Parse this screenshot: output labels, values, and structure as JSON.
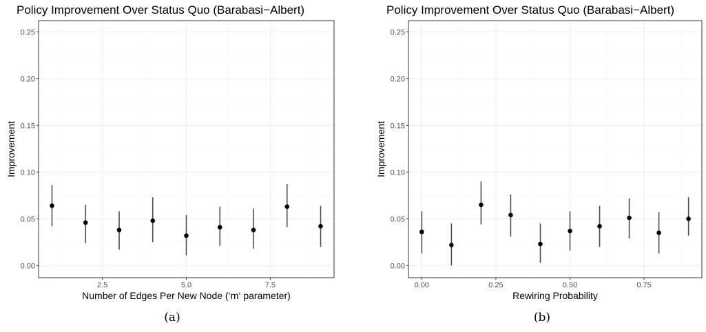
{
  "chart_data": [
    {
      "type": "scatter",
      "title": "Policy Improvement Over Status Quo (Barabasi−Albert)",
      "xlabel": "Number of Edges Per New Node (‘m‘ parameter)",
      "ylabel": "Improvement",
      "caption": "(a)",
      "xlim": [
        0.6,
        9.4
      ],
      "ylim": [
        -0.013,
        0.262
      ],
      "xticks": [
        2.5,
        5.0,
        7.5
      ],
      "xtick_labels": [
        "2.5",
        "5.0",
        "7.5"
      ],
      "yticks": [
        0.0,
        0.05,
        0.1,
        0.15,
        0.2,
        0.25
      ],
      "ytick_labels": [
        "0.00",
        "0.05",
        "0.10",
        "0.15",
        "0.20",
        "0.25"
      ],
      "grid": true,
      "error_bars": true,
      "points": [
        {
          "x": 1,
          "y": 0.064,
          "lo": 0.042,
          "hi": 0.086
        },
        {
          "x": 2,
          "y": 0.046,
          "lo": 0.024,
          "hi": 0.065
        },
        {
          "x": 3,
          "y": 0.038,
          "lo": 0.017,
          "hi": 0.058
        },
        {
          "x": 4,
          "y": 0.048,
          "lo": 0.025,
          "hi": 0.073
        },
        {
          "x": 5,
          "y": 0.032,
          "lo": 0.011,
          "hi": 0.054
        },
        {
          "x": 6,
          "y": 0.041,
          "lo": 0.021,
          "hi": 0.063
        },
        {
          "x": 7,
          "y": 0.038,
          "lo": 0.018,
          "hi": 0.061
        },
        {
          "x": 8,
          "y": 0.063,
          "lo": 0.041,
          "hi": 0.087
        },
        {
          "x": 9,
          "y": 0.042,
          "lo": 0.02,
          "hi": 0.064
        }
      ]
    },
    {
      "type": "scatter",
      "title": "Policy Improvement Over Status Quo (Barabasi−Albert)",
      "xlabel": "Rewiring Probability",
      "ylabel": "Improvement",
      "caption": "(b)",
      "xlim": [
        -0.045,
        0.945
      ],
      "ylim": [
        -0.013,
        0.262
      ],
      "xticks": [
        0.0,
        0.25,
        0.5,
        0.75
      ],
      "xtick_labels": [
        "0.00",
        "0.25",
        "0.50",
        "0.75"
      ],
      "yticks": [
        0.0,
        0.05,
        0.1,
        0.15,
        0.2,
        0.25
      ],
      "ytick_labels": [
        "0.00",
        "0.05",
        "0.10",
        "0.15",
        "0.20",
        "0.25"
      ],
      "grid": true,
      "error_bars": true,
      "points": [
        {
          "x": 0.0,
          "y": 0.036,
          "lo": 0.013,
          "hi": 0.058
        },
        {
          "x": 0.1,
          "y": 0.022,
          "lo": 0.0,
          "hi": 0.045
        },
        {
          "x": 0.2,
          "y": 0.065,
          "lo": 0.044,
          "hi": 0.09
        },
        {
          "x": 0.3,
          "y": 0.054,
          "lo": 0.031,
          "hi": 0.076
        },
        {
          "x": 0.4,
          "y": 0.023,
          "lo": 0.003,
          "hi": 0.045
        },
        {
          "x": 0.5,
          "y": 0.037,
          "lo": 0.016,
          "hi": 0.058
        },
        {
          "x": 0.6,
          "y": 0.042,
          "lo": 0.02,
          "hi": 0.064
        },
        {
          "x": 0.7,
          "y": 0.051,
          "lo": 0.029,
          "hi": 0.072
        },
        {
          "x": 0.8,
          "y": 0.035,
          "lo": 0.013,
          "hi": 0.057
        },
        {
          "x": 0.9,
          "y": 0.05,
          "lo": 0.032,
          "hi": 0.073
        }
      ]
    }
  ],
  "colors": {
    "point": "#000000",
    "errorbar": "#4d4d4d",
    "grid_major": "#ebebeb",
    "grid_minor": "#f5f5f5",
    "panel_border": "#333333"
  }
}
